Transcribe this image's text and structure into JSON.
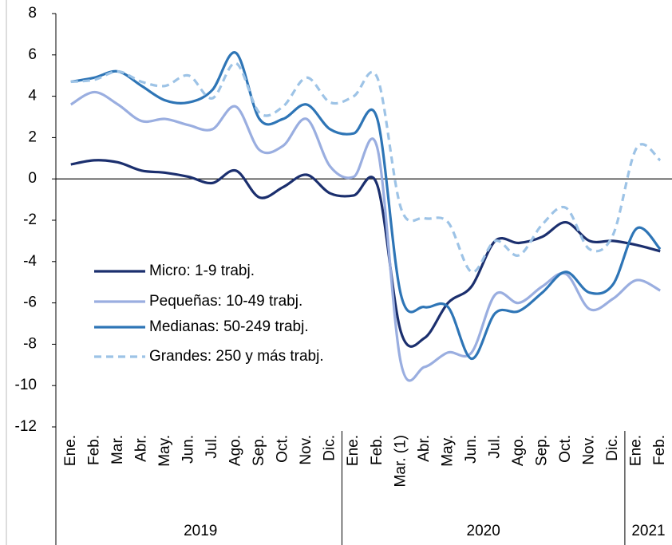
{
  "chart_data": {
    "type": "line",
    "categories": [
      "Ene.",
      "Feb.",
      "Mar.",
      "Abr.",
      "May.",
      "Jun.",
      "Jul.",
      "Ago.",
      "Sep.",
      "Oct.",
      "Nov.",
      "Dic.",
      "Ene.",
      "Feb.",
      "Mar. (1)",
      "Abr.",
      "May.",
      "Jun.",
      "Jul.",
      "Ago.",
      "Sep.",
      "Oct.",
      "Nov.",
      "Dic.",
      "Ene.",
      "Feb."
    ],
    "groups": [
      {
        "label": "2019",
        "start": 0,
        "end": 11
      },
      {
        "label": "2020",
        "start": 12,
        "end": 23
      },
      {
        "label": "2021",
        "start": 24,
        "end": 25
      }
    ],
    "series": [
      {
        "name": "Micro: 1-9 trabj.",
        "color": "#1b2f6e",
        "dash": false,
        "values": [
          0.7,
          0.9,
          0.8,
          0.4,
          0.3,
          0.1,
          -0.2,
          0.4,
          -0.9,
          -0.4,
          0.2,
          -0.7,
          -0.8,
          -0.3,
          -7.4,
          -7.7,
          -6.0,
          -5.2,
          -3.0,
          -3.1,
          -2.8,
          -2.1,
          -3.0,
          -3.0,
          -3.2,
          -3.5
        ]
      },
      {
        "name": "Pequeñas: 10-49 trabj.",
        "color": "#9aaee0",
        "dash": false,
        "values": [
          3.6,
          4.2,
          3.6,
          2.8,
          2.9,
          2.6,
          2.4,
          3.5,
          1.4,
          1.6,
          2.9,
          0.6,
          0.1,
          1.5,
          -8.9,
          -9.1,
          -8.4,
          -8.4,
          -5.6,
          -6.0,
          -5.2,
          -4.6,
          -6.3,
          -5.8,
          -4.9,
          -5.4
        ]
      },
      {
        "name": "Medianas: 50-249 trabj.",
        "color": "#2e75b6",
        "dash": false,
        "values": [
          4.7,
          4.9,
          5.2,
          4.5,
          3.8,
          3.7,
          4.3,
          6.1,
          2.9,
          2.9,
          3.6,
          2.4,
          2.2,
          2.9,
          -5.6,
          -6.2,
          -6.2,
          -8.7,
          -6.5,
          -6.4,
          -5.5,
          -4.5,
          -5.5,
          -5.1,
          -2.4,
          -3.4
        ]
      },
      {
        "name": "Grandes: 250 y más trabj.",
        "color": "#9dc3e6",
        "dash": true,
        "values": [
          4.7,
          4.8,
          5.2,
          4.7,
          4.5,
          5.0,
          3.9,
          5.6,
          3.2,
          3.5,
          4.9,
          3.7,
          4.0,
          4.9,
          -1.4,
          -1.9,
          -2.1,
          -4.5,
          -3.0,
          -3.7,
          -2.2,
          -1.4,
          -3.4,
          -2.7,
          1.5,
          0.9
        ]
      }
    ],
    "ylim": [
      -12,
      8
    ],
    "yticks": [
      -12,
      -10,
      -8,
      -6,
      -4,
      -2,
      0,
      2,
      4,
      6,
      8
    ]
  }
}
